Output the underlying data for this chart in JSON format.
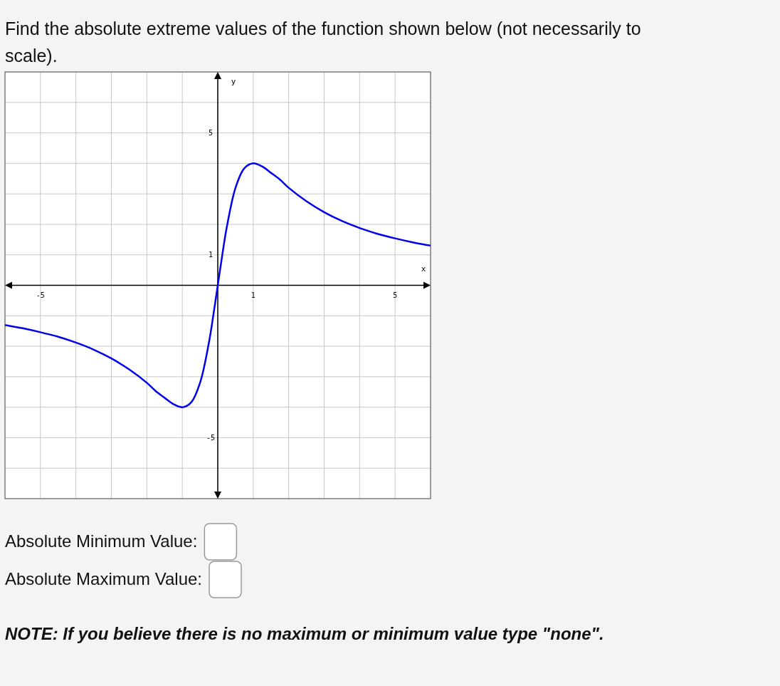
{
  "chart_data": {
    "type": "line",
    "title": "Find the absolute extreme values of the function shown below (not necessarily to scale).",
    "xlabel": "x",
    "ylabel": "y",
    "xlim": [
      -6,
      6
    ],
    "ylim": [
      -7,
      7
    ],
    "xticks": [
      {
        "value": -6,
        "label": null
      },
      -5,
      {
        "value": -4,
        "label": null
      },
      {
        "value": -3,
        "label": null
      },
      {
        "value": -2,
        "label": null
      },
      {
        "value": -1,
        "label": null
      },
      {
        "value": 0,
        "label": null
      },
      1,
      {
        "value": 2,
        "label": null
      },
      {
        "value": 3,
        "label": null
      },
      {
        "value": 4,
        "label": null
      },
      5,
      {
        "value": 6,
        "label": null
      }
    ],
    "yticks": [
      {
        "value": -7,
        "label": null
      },
      {
        "value": -6,
        "label": null
      },
      -5,
      {
        "value": -4,
        "label": null
      },
      {
        "value": -3,
        "label": null
      },
      {
        "value": -2,
        "label": null
      },
      {
        "value": -1,
        "label": null
      },
      {
        "value": 0,
        "label": null
      },
      1,
      {
        "value": 2,
        "label": null
      },
      {
        "value": 3,
        "label": null
      },
      {
        "value": 4,
        "label": null
      },
      5,
      {
        "value": 6,
        "label": null
      },
      {
        "value": 7,
        "label": null
      }
    ],
    "grid": true,
    "marker": "none",
    "line_style": "solid",
    "series": [
      {
        "color": "#0000ee",
        "x": [
          -6,
          -5.5,
          -5,
          -4.5,
          -4,
          -3.5,
          -3,
          -2.5,
          -2,
          -1.75,
          -1.5,
          -1.25,
          -1,
          -0.75,
          -0.5,
          -0.25,
          -0.125,
          0,
          0.125,
          0.25,
          0.5,
          0.75,
          1,
          1.25,
          1.5,
          1.75,
          2,
          2.5,
          3,
          3.5,
          4,
          4.5,
          5,
          5.5,
          6
        ],
        "values": [
          -1.3,
          -1.41,
          -1.54,
          -1.69,
          -1.88,
          -2.11,
          -2.4,
          -2.76,
          -3.2,
          -3.47,
          -3.69,
          -3.9,
          -4,
          -3.84,
          -3.2,
          -1.88,
          -0.98,
          0,
          0.98,
          1.88,
          3.2,
          3.84,
          4,
          3.9,
          3.69,
          3.47,
          3.2,
          2.76,
          2.4,
          2.11,
          1.88,
          1.69,
          1.54,
          1.41,
          1.3
        ]
      }
    ],
    "annotations": [
      "Absolute Minimum Value:",
      "Absolute Maximum Value:",
      "NOTE: If you believe there is no maximum or minimum value type \"none\"."
    ]
  }
}
